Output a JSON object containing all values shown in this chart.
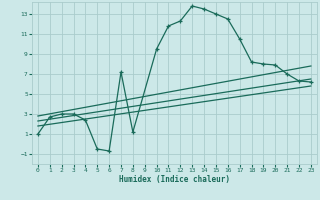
{
  "xlabel": "Humidex (Indice chaleur)",
  "bg_color": "#cce8e8",
  "line_color": "#1a6b5a",
  "grid_color": "#aacccc",
  "xlim": [
    -0.5,
    23.5
  ],
  "ylim": [
    -2.0,
    14.2
  ],
  "xticks": [
    0,
    1,
    2,
    3,
    4,
    5,
    6,
    7,
    8,
    9,
    10,
    11,
    12,
    13,
    14,
    15,
    16,
    17,
    18,
    19,
    20,
    21,
    22,
    23
  ],
  "yticks": [
    -1,
    1,
    3,
    5,
    7,
    9,
    11,
    13
  ],
  "main_curve_x": [
    0,
    1,
    2,
    3,
    4,
    5,
    6,
    7,
    8,
    10,
    11,
    12,
    13,
    14,
    15,
    16,
    17,
    18,
    19,
    20,
    21,
    22,
    23
  ],
  "main_curve_y": [
    1.0,
    2.7,
    3.0,
    3.0,
    2.4,
    -0.5,
    -0.7,
    7.2,
    1.2,
    9.5,
    11.8,
    12.3,
    13.8,
    13.5,
    13.0,
    12.5,
    10.5,
    8.2,
    8.0,
    7.9,
    7.0,
    6.3,
    6.2
  ],
  "reg_line1_x": [
    0,
    23
  ],
  "reg_line1_y": [
    2.8,
    7.8
  ],
  "reg_line2_x": [
    0,
    23
  ],
  "reg_line2_y": [
    2.3,
    6.5
  ],
  "reg_line3_x": [
    0,
    23
  ],
  "reg_line3_y": [
    1.8,
    5.8
  ]
}
